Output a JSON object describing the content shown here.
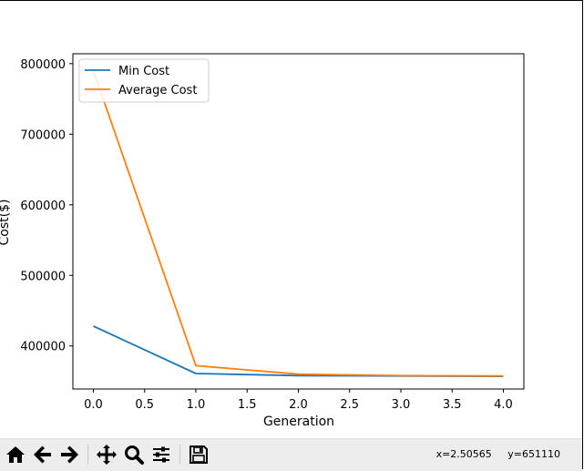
{
  "chart_data": {
    "type": "line",
    "title": "",
    "xlabel": "Generation",
    "ylabel": "Cost($)",
    "xlim": [
      -0.2,
      4.2
    ],
    "ylim": [
      339000,
      814000
    ],
    "xticks": [
      0.0,
      0.5,
      1.0,
      1.5,
      2.0,
      2.5,
      3.0,
      3.5,
      4.0
    ],
    "xtick_labels": [
      "0.0",
      "0.5",
      "1.0",
      "1.5",
      "2.0",
      "2.5",
      "3.0",
      "3.5",
      "4.0"
    ],
    "yticks": [
      400000,
      500000,
      600000,
      700000,
      800000
    ],
    "ytick_labels": [
      "400000",
      "500000",
      "600000",
      "700000",
      "800000"
    ],
    "grid": false,
    "legend_position": "upper-left",
    "x": [
      0,
      1,
      2,
      3,
      4
    ],
    "series": [
      {
        "name": "Min Cost",
        "color": "#1f77b4",
        "values": [
          428000,
          361000,
          358000,
          357500,
          357000
        ]
      },
      {
        "name": "Average Cost",
        "color": "#ff7f0e",
        "values": [
          790000,
          372000,
          360000,
          358000,
          357500
        ]
      }
    ]
  },
  "toolbar": {
    "icons": [
      "home-icon",
      "back-arrow-icon",
      "forward-arrow-icon",
      "pan-icon",
      "zoom-icon",
      "subplots-icon",
      "save-icon"
    ],
    "x_readout": "x=2.50565",
    "y_readout": "y=651110"
  }
}
